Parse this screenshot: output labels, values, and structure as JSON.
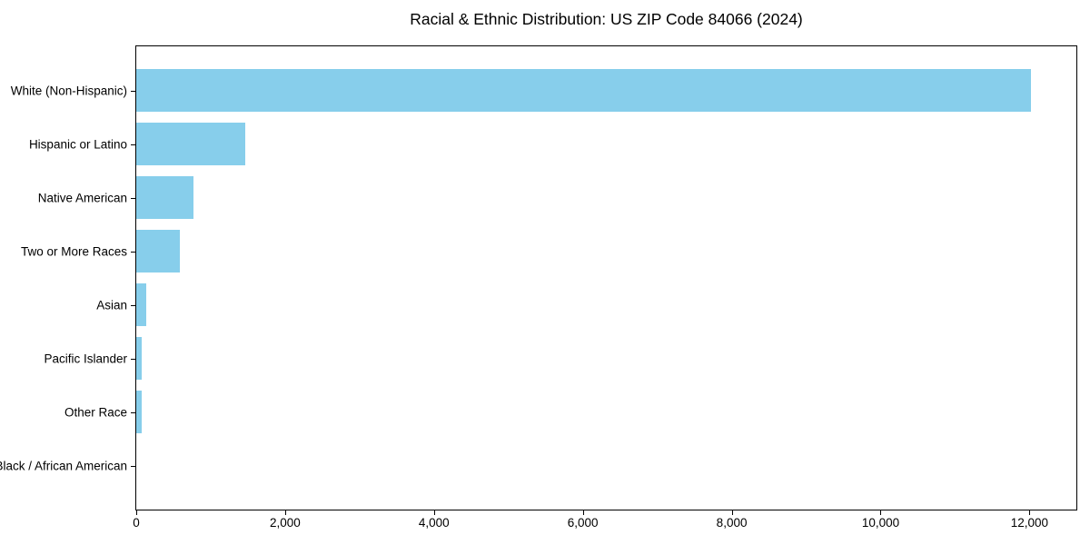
{
  "title": "Racial & Ethnic Distribution: US ZIP Code 84066 (2024)",
  "chart_data": {
    "type": "bar",
    "orientation": "horizontal",
    "title": "Racial & Ethnic Distribution: US ZIP Code 84066 (2024)",
    "xlabel": "",
    "ylabel": "",
    "categories": [
      "White (Non-Hispanic)",
      "Hispanic or Latino",
      "Native American",
      "Two or More Races",
      "Asian",
      "Pacific Islander",
      "Other Race",
      "Black / African American"
    ],
    "values": [
      12025,
      1460,
      765,
      590,
      135,
      75,
      70,
      0
    ],
    "xlim": [
      0,
      12630
    ],
    "x_ticks": [
      0,
      2000,
      4000,
      6000,
      8000,
      10000,
      12000
    ],
    "x_tick_labels": [
      "0",
      "2,000",
      "4,000",
      "6,000",
      "8,000",
      "10,000",
      "12,000"
    ],
    "bar_color": "#87CEEB",
    "axis_color": "#000000",
    "text_color": "#000000",
    "grid": false,
    "legend": null
  }
}
